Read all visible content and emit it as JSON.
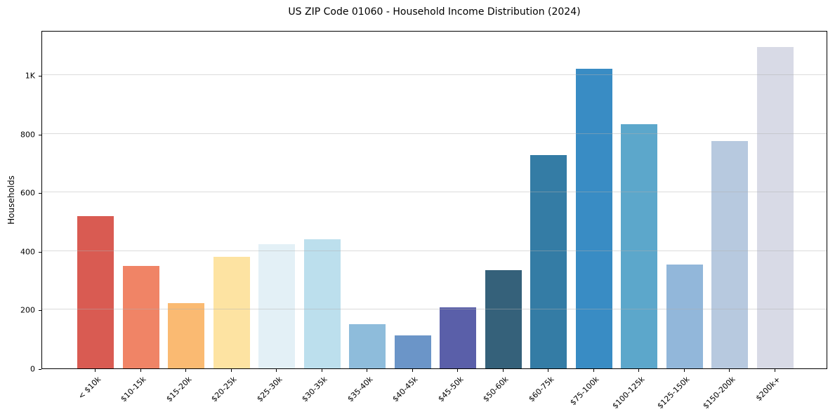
{
  "chart_data": {
    "type": "bar",
    "title": "US ZIP Code 01060 - Household Income Distribution (2024)",
    "xlabel": "",
    "ylabel": "Households",
    "categories": [
      "< $10k",
      "$10-15k",
      "$15-20k",
      "$20-25k",
      "$25-30k",
      "$30-35k",
      "$35-40k",
      "$40-45k",
      "$45-50k",
      "$50-60k",
      "$60-75k",
      "$75-100k",
      "$100-125k",
      "$125-150k",
      "$150-200k",
      "$200k+"
    ],
    "values": [
      520,
      350,
      222,
      380,
      424,
      440,
      150,
      113,
      207,
      336,
      728,
      1021,
      833,
      354,
      775,
      1096
    ],
    "colors": [
      "#D95B52",
      "#F08466",
      "#FABA72",
      "#FDE3A2",
      "#E3F0F6",
      "#BCDFED",
      "#8EBCDB",
      "#6B95C8",
      "#5A5FA9",
      "#35617A",
      "#347CA5",
      "#398CC4",
      "#5CA7CB",
      "#92B7DA",
      "#B7C9DF",
      "#D8DAE6"
    ],
    "ylim": [
      0,
      1153
    ],
    "yticks": {
      "values": [
        0,
        200,
        400,
        600,
        800,
        1000
      ],
      "labels": [
        "0",
        "200",
        "400",
        "600",
        "800",
        "1K"
      ]
    },
    "grid": "horizontal gridlines at y ticks, drawn above bars",
    "grid_color": "#b0b0b0",
    "legend": "none",
    "background": "#ffffff"
  }
}
